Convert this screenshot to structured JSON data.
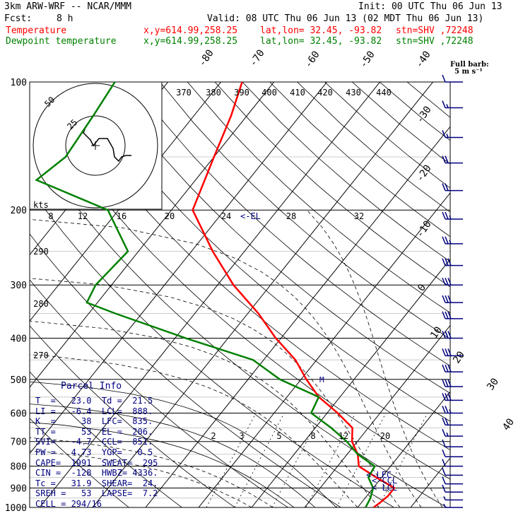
{
  "header": {
    "model": "3km ARW-WRF -- NCAR/MMM",
    "init": "Init: 00 UTC Thu 06 Jun 13",
    "fcst_label": "Fcst:",
    "fcst_value": "8 h",
    "valid": "Valid: 08 UTC Thu 06 Jun 13 (02 MDT Thu 06 Jun 13)",
    "temp_line": {
      "label": "Temperature",
      "xy": "x,y=614.99,258.25",
      "latlon": "lat,lon= 32.45, -93.82",
      "stn": "stn=SHV ,72248"
    },
    "dewp_line": {
      "label": "Dewpoint temperature",
      "xy": "x,y=614.99,258.25",
      "latlon": "lat,lon= 32.45, -93.82",
      "stn": "stn=SHV ,72248"
    },
    "barb_note_1": "Full barb:",
    "barb_note_2": "5 m s⁻¹"
  },
  "parcel": {
    "title": "Parcel Info",
    "rows": [
      "T  =   23.0  Td =  21.5",
      "LI =   -6.4  LCL=  888.",
      "K  =     38  LFC=  835.",
      "TT =     53  EL =  206.",
      "SVI=   -4.7  CCL=  851.",
      "PW =   4.73  YGP=   0.5",
      "CAPE=  1991  SWEAT=  295",
      "CIN =  -128  HWBZ= 4336.",
      "Tc =   31.9  SHEAR=  24.",
      "SREH =   53  LAPSE=  7.2",
      "CELL = 294/16"
    ]
  },
  "chart_data": {
    "type": "line",
    "title": "",
    "ylabel": "",
    "pressure_levels": [
      "100",
      "200",
      "300",
      "400",
      "500",
      "600",
      "700",
      "800",
      "900",
      "1000"
    ],
    "skewed_isotherm_labels": [
      "-80",
      "-70",
      "-60",
      "-50",
      "-40",
      "-30",
      "-20",
      "-10",
      "0",
      "10",
      "20",
      "30",
      "40"
    ],
    "theta_labels": [
      "370",
      "380",
      "390",
      "400",
      "410",
      "420",
      "430",
      "440"
    ],
    "theta_labels_left": [
      "290",
      "280",
      "270"
    ],
    "mixing_ratio_labels": [
      "2",
      "3",
      "5",
      "8",
      "12",
      "20"
    ],
    "hodograph": {
      "units_label": "kts",
      "speed_ticks": [
        "8",
        "12",
        "16",
        "20",
        "24",
        "28",
        "32"
      ],
      "ring_labels": [
        "50",
        "25"
      ]
    },
    "annotations": {
      "el": "<-EL",
      "lfc": "<-LFC",
      "ccl": "<-CCL",
      "lcl": "<-LCL",
      "marker": "M"
    },
    "series": [
      {
        "name": "Temperature",
        "color": "#ff0000",
        "points": [
          [
            100,
            -66
          ],
          [
            120,
            -63
          ],
          [
            150,
            -60
          ],
          [
            200,
            -56
          ],
          [
            250,
            -46
          ],
          [
            300,
            -37
          ],
          [
            350,
            -28
          ],
          [
            400,
            -21
          ],
          [
            450,
            -14
          ],
          [
            500,
            -9
          ],
          [
            550,
            -4
          ],
          [
            600,
            2
          ],
          [
            650,
            7
          ],
          [
            700,
            9
          ],
          [
            750,
            12
          ],
          [
            800,
            14
          ],
          [
            850,
            19
          ],
          [
            900,
            24
          ],
          [
            940,
            24
          ],
          [
            975,
            23.5
          ],
          [
            1000,
            23
          ]
        ]
      },
      {
        "name": "Dewpoint temperature",
        "color": "#008000",
        "points": [
          [
            100,
            -90
          ],
          [
            120,
            -89
          ],
          [
            150,
            -88
          ],
          [
            170,
            -90
          ],
          [
            200,
            -72
          ],
          [
            250,
            -62
          ],
          [
            300,
            -63
          ],
          [
            330,
            -62
          ],
          [
            350,
            -55
          ],
          [
            400,
            -38
          ],
          [
            450,
            -22
          ],
          [
            500,
            -14
          ],
          [
            550,
            -4
          ],
          [
            600,
            -3
          ],
          [
            650,
            3
          ],
          [
            700,
            8
          ],
          [
            750,
            12
          ],
          [
            800,
            17
          ],
          [
            850,
            17.5
          ],
          [
            900,
            20
          ],
          [
            950,
            21
          ],
          [
            1000,
            21.5
          ]
        ]
      }
    ],
    "wind_barbs": [
      {
        "p": 100,
        "speed_ms": 10,
        "dir": 270
      },
      {
        "p": 115,
        "speed_ms": 15,
        "dir": 270
      },
      {
        "p": 135,
        "speed_ms": 15,
        "dir": 270
      },
      {
        "p": 155,
        "speed_ms": 20,
        "dir": 270
      },
      {
        "p": 180,
        "speed_ms": 20,
        "dir": 270
      },
      {
        "p": 210,
        "speed_ms": 25,
        "dir": 270
      },
      {
        "p": 240,
        "speed_ms": 25,
        "dir": 270
      },
      {
        "p": 270,
        "speed_ms": 30,
        "dir": 270
      },
      {
        "p": 300,
        "speed_ms": 30,
        "dir": 270
      },
      {
        "p": 330,
        "speed_ms": 30,
        "dir": 270
      },
      {
        "p": 360,
        "speed_ms": 30,
        "dir": 270
      },
      {
        "p": 400,
        "speed_ms": 30,
        "dir": 270
      },
      {
        "p": 440,
        "speed_ms": 30,
        "dir": 270
      },
      {
        "p": 480,
        "speed_ms": 30,
        "dir": 270
      },
      {
        "p": 520,
        "speed_ms": 30,
        "dir": 270
      },
      {
        "p": 560,
        "speed_ms": 30,
        "dir": 270
      },
      {
        "p": 600,
        "speed_ms": 25,
        "dir": 270
      },
      {
        "p": 640,
        "speed_ms": 20,
        "dir": 270
      },
      {
        "p": 680,
        "speed_ms": 15,
        "dir": 270
      },
      {
        "p": 720,
        "speed_ms": 10,
        "dir": 270
      },
      {
        "p": 760,
        "speed_ms": 10,
        "dir": 250
      },
      {
        "p": 800,
        "speed_ms": 10,
        "dir": 240
      },
      {
        "p": 840,
        "speed_ms": 10,
        "dir": 230
      },
      {
        "p": 880,
        "speed_ms": 10,
        "dir": 220
      },
      {
        "p": 920,
        "speed_ms": 10,
        "dir": 210
      },
      {
        "p": 960,
        "speed_ms": 5,
        "dir": 190
      },
      {
        "p": 1000,
        "speed_ms": 5,
        "dir": 180
      }
    ],
    "hodograph_trace_uv": [
      [
        -8,
        -2
      ],
      [
        -6,
        -6
      ],
      [
        -4,
        -10
      ],
      [
        -2,
        -14
      ],
      [
        2,
        -13
      ],
      [
        4,
        -10
      ],
      [
        8,
        -10
      ],
      [
        8,
        -14
      ],
      [
        9,
        -16
      ],
      [
        10,
        -17
      ],
      [
        14,
        -16
      ],
      [
        16,
        -16
      ]
    ],
    "colors": {
      "temperature": "#ff0000",
      "dewpoint": "#008000",
      "labels": "#000080"
    }
  }
}
